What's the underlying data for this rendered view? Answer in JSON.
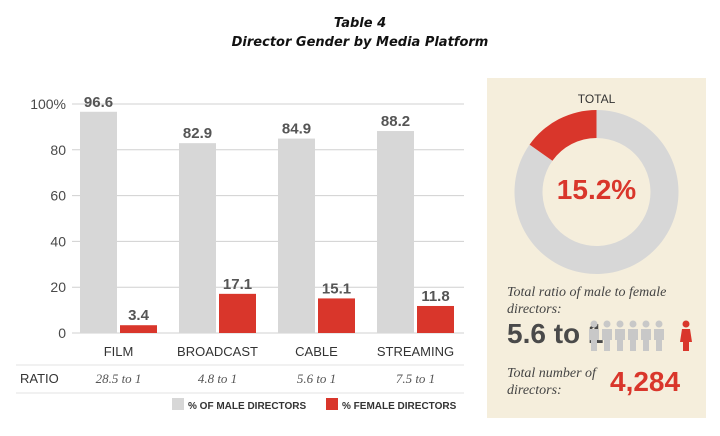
{
  "title": {
    "line1": "Table 4",
    "line2": "Director Gender by Media Platform"
  },
  "chart_data": {
    "type": "bar",
    "categories": [
      "FILM",
      "BROADCAST",
      "CABLE",
      "STREAMING"
    ],
    "series": [
      {
        "name": "% OF MALE DIRECTORS",
        "values": [
          96.6,
          82.9,
          84.9,
          88.2
        ],
        "color": "#d7d7d7"
      },
      {
        "name": "% FEMALE DIRECTORS",
        "values": [
          3.4,
          17.1,
          15.1,
          11.8
        ],
        "color": "#d9362b"
      }
    ],
    "y_ticks": [
      "100%",
      "80",
      "60",
      "40",
      "20",
      "0"
    ],
    "ylim": [
      0,
      100
    ],
    "grid": true,
    "legend_position": "bottom",
    "ratio_row": {
      "label": "RATIO",
      "values": [
        "28.5 to 1",
        "4.8 to 1",
        "5.6 to 1",
        "7.5 to 1"
      ]
    }
  },
  "total_panel": {
    "title": "TOTAL",
    "female_pct": 15.2,
    "pct_label": "15.2%",
    "ring_colors": {
      "male": "#d7d7d7",
      "female": "#d9362b"
    },
    "ratio_caption": "Total ratio of male to female directors:",
    "ratio_value": "5.6 to 1",
    "count_caption": "Total number of directors:",
    "count_value": "4,284",
    "icon_colors": {
      "male": "#c8c8c8",
      "female": "#d9362b"
    }
  }
}
